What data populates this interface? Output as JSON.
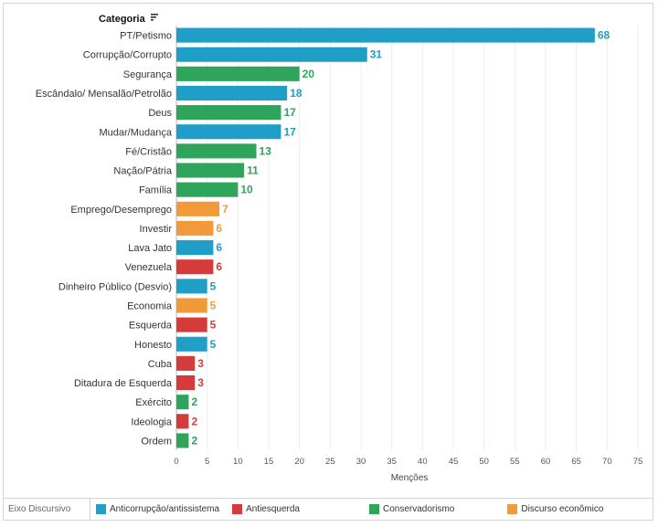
{
  "header": {
    "label": "Categoria"
  },
  "chart_data": {
    "type": "bar",
    "orientation": "horizontal",
    "xlabel": "Menções",
    "xlim": [
      0,
      75
    ],
    "xticks": [
      0,
      5,
      10,
      15,
      20,
      25,
      30,
      35,
      40,
      45,
      50,
      55,
      60,
      65,
      70,
      75
    ],
    "grid": true,
    "legend_title": "Eixo Discursivo",
    "legend_position": "bottom",
    "groups": [
      {
        "key": "anti",
        "name": "Anticorrupção/antissistema",
        "color": "#1f9ec8"
      },
      {
        "key": "esq",
        "name": "Antiesquerda",
        "color": "#d63b3b"
      },
      {
        "key": "cons",
        "name": "Conservadorismo",
        "color": "#2ea55a"
      },
      {
        "key": "eco",
        "name": "Discurso econômico",
        "color": "#f29a3a"
      }
    ],
    "bars": [
      {
        "category": "PT/Petismo",
        "value": 68,
        "group": "anti"
      },
      {
        "category": "Corrupção/Corrupto",
        "value": 31,
        "group": "anti"
      },
      {
        "category": "Segurança",
        "value": 20,
        "group": "cons"
      },
      {
        "category": "Escândalo/ Mensalão/Petrolão",
        "value": 18,
        "group": "anti"
      },
      {
        "category": "Deus",
        "value": 17,
        "group": "cons"
      },
      {
        "category": "Mudar/Mudança",
        "value": 17,
        "group": "anti"
      },
      {
        "category": "Fé/Cristão",
        "value": 13,
        "group": "cons"
      },
      {
        "category": "Nação/Pátria",
        "value": 11,
        "group": "cons"
      },
      {
        "category": "Família",
        "value": 10,
        "group": "cons"
      },
      {
        "category": "Emprego/Desemprego",
        "value": 7,
        "group": "eco"
      },
      {
        "category": "Investir",
        "value": 6,
        "group": "eco"
      },
      {
        "category": "Lava Jato",
        "value": 6,
        "group": "anti"
      },
      {
        "category": "Venezuela",
        "value": 6,
        "group": "esq"
      },
      {
        "category": "Dinheiro Público (Desvio)",
        "value": 5,
        "group": "anti"
      },
      {
        "category": "Economia",
        "value": 5,
        "group": "eco"
      },
      {
        "category": "Esquerda",
        "value": 5,
        "group": "esq"
      },
      {
        "category": "Honesto",
        "value": 5,
        "group": "anti"
      },
      {
        "category": "Cuba",
        "value": 3,
        "group": "esq"
      },
      {
        "category": "Ditadura de Esquerda",
        "value": 3,
        "group": "esq"
      },
      {
        "category": "Exército",
        "value": 2,
        "group": "cons"
      },
      {
        "category": "Ideologia",
        "value": 2,
        "group": "esq"
      },
      {
        "category": "Ordem",
        "value": 2,
        "group": "cons"
      }
    ]
  }
}
